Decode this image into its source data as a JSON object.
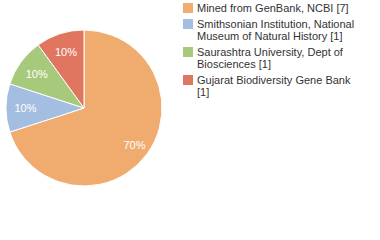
{
  "chart_data": {
    "type": "pie",
    "categories": [
      "Mined from GenBank, NCBI [7]",
      "Smithsonian Institution, National Museum of Natural History [1]",
      "Saurashtra University, Dept of Biosciences [1]",
      "Gujarat Biodiversity Gene Bank [1]"
    ],
    "values": [
      70,
      10,
      10,
      10
    ],
    "value_labels": [
      "70%",
      "10%",
      "10%",
      "10%"
    ],
    "colors": [
      "#f0ab6f",
      "#a4bee1",
      "#a7c97c",
      "#e0765f"
    ],
    "data_labels": true,
    "legend": "top-right"
  }
}
